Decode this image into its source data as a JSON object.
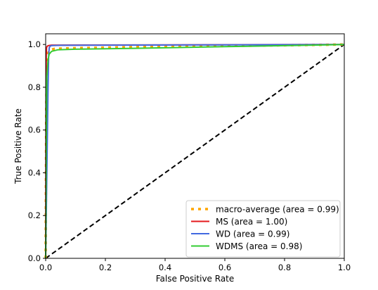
{
  "chart_data": {
    "type": "line",
    "title": "",
    "xlabel": "False Positive Rate",
    "ylabel": "True Positive Rate",
    "xlim": [
      0.0,
      1.0
    ],
    "ylim": [
      0.0,
      1.05
    ],
    "x_ticks": [
      "0.0",
      "0.2",
      "0.4",
      "0.6",
      "0.8",
      "1.0"
    ],
    "y_ticks": [
      "0.0",
      "0.2",
      "0.4",
      "0.6",
      "0.8",
      "1.0"
    ],
    "grid": false,
    "legend_position": "bottom-right",
    "series": [
      {
        "name": "macro-average (area = 0.99)",
        "color": "#ffa500",
        "style": "dotted",
        "x": [
          0.0,
          0.002,
          0.004,
          0.008,
          0.015,
          0.03,
          0.1,
          0.3,
          0.6,
          0.9,
          1.0
        ],
        "y": [
          0.0,
          0.7,
          0.92,
          0.96,
          0.975,
          0.98,
          0.983,
          0.988,
          0.993,
          0.998,
          1.0
        ]
      },
      {
        "name": "MS (area = 1.00)",
        "color": "#e41a1c",
        "style": "solid",
        "x": [
          0.0,
          0.001,
          0.002,
          0.003,
          0.005,
          0.01,
          0.02,
          1.0
        ],
        "y": [
          0.0,
          0.6,
          0.95,
          0.985,
          0.992,
          0.995,
          0.997,
          1.0
        ]
      },
      {
        "name": "WD (area = 0.99)",
        "color": "#4169e1",
        "style": "solid",
        "x": [
          0.0,
          0.004,
          0.008,
          0.01,
          0.012,
          0.015,
          0.02,
          0.05,
          1.0
        ],
        "y": [
          0.0,
          0.4,
          0.8,
          0.95,
          0.985,
          0.992,
          0.995,
          0.996,
          1.0
        ]
      },
      {
        "name": "WDMS (area = 0.98)",
        "color": "#33cc33",
        "style": "solid",
        "x": [
          0.0,
          0.002,
          0.004,
          0.008,
          0.012,
          0.02,
          0.04,
          0.1,
          0.3,
          0.6,
          0.9,
          1.0
        ],
        "y": [
          0.0,
          0.5,
          0.85,
          0.93,
          0.955,
          0.968,
          0.975,
          0.978,
          0.982,
          0.99,
          0.997,
          1.0
        ]
      },
      {
        "name": "",
        "color": "#000000",
        "style": "dashed",
        "x": [
          0.0,
          1.0
        ],
        "y": [
          0.0,
          1.0
        ]
      }
    ]
  }
}
